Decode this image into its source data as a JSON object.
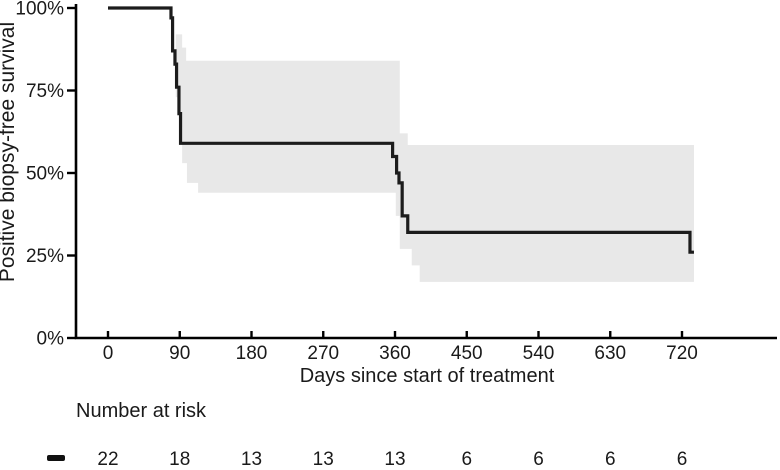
{
  "chart_data": {
    "type": "line",
    "subtype": "kaplan-meier-step-curve",
    "title": "",
    "xlabel": "Days since start of treatment",
    "ylabel": "Positive biopsy-free survival",
    "x_ticks_days": [
      0,
      90,
      180,
      270,
      360,
      450,
      540,
      630,
      720
    ],
    "x_tick_labels": [
      "0",
      "90",
      "180",
      "270",
      "360",
      "450",
      "540",
      "630",
      "720"
    ],
    "y_ticks_pct": [
      0,
      25,
      50,
      75,
      100
    ],
    "y_tick_labels": [
      "0%",
      "25%",
      "50%",
      "75%",
      "100%"
    ],
    "xlim_days": [
      -40,
      840
    ],
    "ylim_pct": [
      0,
      100
    ],
    "grid": false,
    "legend_position": "none",
    "colors": {
      "curve": "#1c1c1c",
      "ci_band": "#e8e8e8",
      "axis": "#000000",
      "text": "#1a1a1a"
    },
    "series": [
      {
        "name": "",
        "marker": "black-dash",
        "plateaus_pct": [
          100,
          59,
          32,
          26
        ],
        "steps_day_pct": [
          [
            0,
            100
          ],
          [
            79,
            100
          ],
          [
            79,
            97
          ],
          [
            81,
            97
          ],
          [
            81,
            87
          ],
          [
            84,
            87
          ],
          [
            84,
            83
          ],
          [
            86,
            83
          ],
          [
            86,
            76
          ],
          [
            89,
            76
          ],
          [
            89,
            68
          ],
          [
            91,
            68
          ],
          [
            91,
            59
          ],
          [
            357,
            59
          ],
          [
            357,
            55
          ],
          [
            362,
            55
          ],
          [
            362,
            50
          ],
          [
            365,
            50
          ],
          [
            365,
            47
          ],
          [
            369,
            47
          ],
          [
            369,
            37
          ],
          [
            376,
            37
          ],
          [
            376,
            32
          ],
          [
            730,
            32
          ],
          [
            730,
            26
          ],
          [
            735,
            26
          ]
        ],
        "ci_upper_day_pct": [
          [
            85,
            92
          ],
          [
            93,
            92
          ],
          [
            93,
            88
          ],
          [
            98,
            88
          ],
          [
            98,
            84
          ],
          [
            366,
            84
          ],
          [
            366,
            62
          ],
          [
            376,
            62
          ],
          [
            376,
            58.5
          ],
          [
            735,
            58.5
          ]
        ],
        "ci_lower_day_pct": [
          [
            85,
            73
          ],
          [
            89,
            73
          ],
          [
            89,
            64
          ],
          [
            93,
            64
          ],
          [
            93,
            53
          ],
          [
            99,
            53
          ],
          [
            99,
            47
          ],
          [
            113,
            47
          ],
          [
            113,
            44
          ],
          [
            361,
            44
          ],
          [
            361,
            37
          ],
          [
            366,
            37
          ],
          [
            366,
            27
          ],
          [
            381,
            27
          ],
          [
            381,
            22
          ],
          [
            391,
            22
          ],
          [
            391,
            17
          ],
          [
            735,
            17
          ]
        ]
      }
    ],
    "number_at_risk": {
      "title": "Number at risk",
      "days": [
        0,
        90,
        180,
        270,
        360,
        450,
        540,
        630,
        720
      ],
      "groups": [
        {
          "marker_color": "#111111",
          "counts": [
            "22",
            "18",
            "13",
            "13",
            "13",
            "6",
            "6",
            "6",
            "6"
          ]
        }
      ]
    }
  }
}
